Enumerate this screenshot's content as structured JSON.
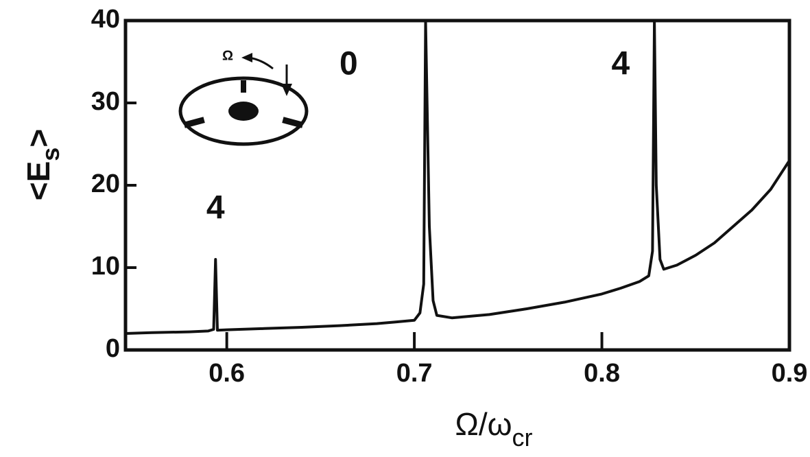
{
  "chart_data": {
    "type": "line",
    "x": [
      0.546,
      0.56,
      0.58,
      0.59,
      0.593,
      0.594,
      0.595,
      0.6,
      0.62,
      0.64,
      0.66,
      0.68,
      0.69,
      0.7,
      0.703,
      0.705,
      0.706,
      0.708,
      0.71,
      0.712,
      0.72,
      0.74,
      0.76,
      0.78,
      0.8,
      0.81,
      0.82,
      0.825,
      0.827,
      0.828,
      0.829,
      0.831,
      0.833,
      0.84,
      0.85,
      0.86,
      0.87,
      0.88,
      0.89,
      0.9
    ],
    "series": [
      {
        "color": "#111111",
        "values": [
          2.0,
          2.1,
          2.2,
          2.3,
          2.5,
          11,
          2.4,
          2.45,
          2.6,
          2.75,
          2.95,
          3.2,
          3.4,
          3.6,
          4.5,
          8,
          40,
          15,
          6,
          4.2,
          3.9,
          4.3,
          5,
          5.8,
          6.8,
          7.5,
          8.3,
          9,
          12,
          40,
          20,
          11,
          9.8,
          10.3,
          11.5,
          13,
          15,
          17,
          19.5,
          23
        ]
      }
    ],
    "xlim": [
      0.546,
      0.9
    ],
    "ylim": [
      0,
      40
    ],
    "xticks": [
      0.6,
      0.7,
      0.8,
      0.9
    ],
    "yticks": [
      0,
      10,
      20,
      30,
      40
    ],
    "xlabel": [
      "Ω/ω",
      "cr"
    ],
    "ylabel": [
      "<E",
      "s",
      ">"
    ],
    "annotations": [
      {
        "text": "4",
        "x": 0.594,
        "y": 17
      },
      {
        "text": "0",
        "x": 0.665,
        "y": 34.5
      },
      {
        "text": "4",
        "x": 0.81,
        "y": 34.5
      }
    ],
    "inset_label": "Ω"
  }
}
